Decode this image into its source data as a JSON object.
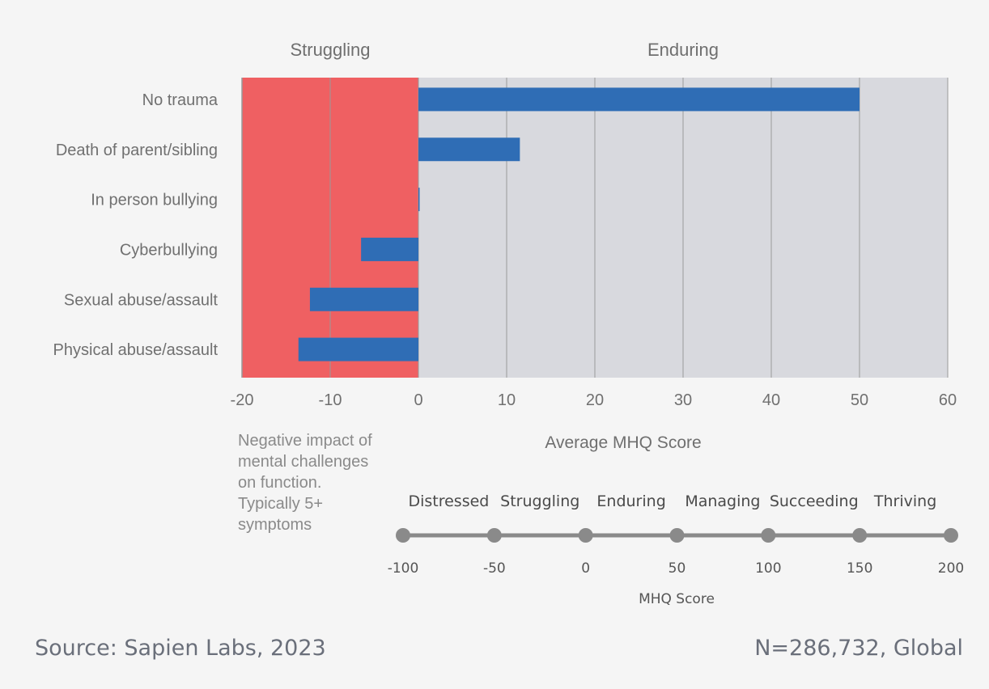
{
  "chart_data": {
    "type": "bar",
    "orientation": "horizontal",
    "categories": [
      "No trauma",
      "Death of parent/sibling",
      "In person bullying",
      "Cyberbullying",
      "Sexual abuse/assault",
      "Physical abuse/assault"
    ],
    "values": [
      50,
      11.5,
      0,
      -6.5,
      -12.3,
      -13.6
    ],
    "xlabel": "Average MHQ Score",
    "xlim": [
      -20,
      60
    ],
    "xticks": [
      -20,
      -10,
      0,
      10,
      20,
      30,
      40,
      50,
      60
    ],
    "grid": true,
    "bar_color": "#2f6db5",
    "regions": [
      {
        "label": "Struggling",
        "from": -20,
        "to": 0,
        "color": "#ef6062"
      },
      {
        "label": "Enduring",
        "from": 0,
        "to": 60,
        "color": "#d8d9de"
      }
    ],
    "note_lines": [
      "Negative impact of",
      "mental challenges",
      "on function.",
      "Typically 5+",
      "symptoms"
    ]
  },
  "scale": {
    "title": "MHQ Score",
    "ticks": [
      -100,
      -50,
      0,
      50,
      100,
      150,
      200
    ],
    "levels": [
      "Distressed",
      "Struggling",
      "Enduring",
      "Managing",
      "Succeeding",
      "Thriving"
    ]
  },
  "footer": {
    "source": "Source: Sapien Labs, 2023",
    "sample": "N=286,732, Global"
  }
}
